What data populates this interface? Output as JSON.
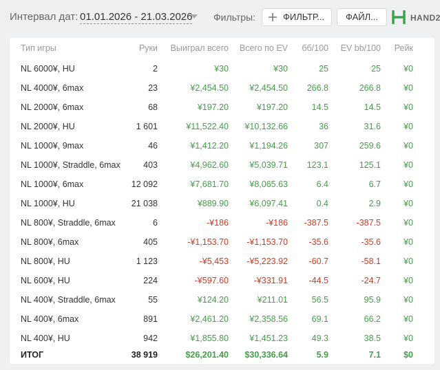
{
  "toolbar": {
    "date_label": "Интервал дат:",
    "date_range": "01.01.2026 - 21.03.2026",
    "filters_label": "Фильтры:",
    "filter_button": "ФИЛЬТР...",
    "file_button": "ФАЙЛ...",
    "logo": "HAND2"
  },
  "table": {
    "headers": [
      "Тип игры",
      "Руки",
      "Выиграл всего",
      "Всего по EV",
      "бб/100",
      "EV bb/100",
      "Рейк"
    ],
    "rows": [
      [
        "NL 6000¥, HU",
        "2",
        "¥30",
        "¥30",
        "25",
        "25",
        "¥0"
      ],
      [
        "NL 4000¥, 6max",
        "23",
        "¥2,454.50",
        "¥2,454.50",
        "266.8",
        "266.8",
        "¥0"
      ],
      [
        "NL 2000¥, 6max",
        "68",
        "¥197.20",
        "¥197.20",
        "14.5",
        "14.5",
        "¥0"
      ],
      [
        "NL 2000¥, HU",
        "1 601",
        "¥11,522.40",
        "¥10,132.66",
        "36",
        "31.6",
        "¥0"
      ],
      [
        "NL 1000¥, 9max",
        "46",
        "¥1,412.20",
        "¥1,194.26",
        "307",
        "259.6",
        "¥0"
      ],
      [
        "NL 1000¥, Straddle, 6max",
        "403",
        "¥4,962.60",
        "¥5,039.71",
        "123.1",
        "125.1",
        "¥0"
      ],
      [
        "NL 1000¥, 6max",
        "12 092",
        "¥7,681.70",
        "¥8,065.63",
        "6.4",
        "6.7",
        "¥0"
      ],
      [
        "NL 1000¥, HU",
        "21 038",
        "¥889.90",
        "¥6,097.41",
        "0.4",
        "2.9",
        "¥0"
      ],
      [
        "NL 800¥, Straddle, 6max",
        "6",
        "-¥186",
        "-¥186",
        "-387.5",
        "-387.5",
        "¥0"
      ],
      [
        "NL 800¥, 6max",
        "405",
        "-¥1,153.70",
        "-¥1,153.70",
        "-35.6",
        "-35.6",
        "¥0"
      ],
      [
        "NL 800¥, HU",
        "1 123",
        "-¥5,453",
        "-¥5,223.92",
        "-60.7",
        "-58.1",
        "¥0"
      ],
      [
        "NL 600¥, HU",
        "224",
        "-¥597.60",
        "-¥331.91",
        "-44.5",
        "-24.7",
        "¥0"
      ],
      [
        "NL 400¥, Straddle, 6max",
        "55",
        "¥124.20",
        "¥211.01",
        "56.5",
        "95.9",
        "¥0"
      ],
      [
        "NL 400¥, 6max",
        "891",
        "¥2,461.20",
        "¥2,358.56",
        "69.1",
        "66.2",
        "¥0"
      ],
      [
        "NL 400¥, HU",
        "942",
        "¥1,855.80",
        "¥1,451.23",
        "49.3",
        "38.5",
        "¥0"
      ]
    ],
    "total": [
      "ИТОГ",
      "38 919",
      "$26,201.40",
      "$30,336.64",
      "5.9",
      "7.1",
      "$0"
    ]
  }
}
